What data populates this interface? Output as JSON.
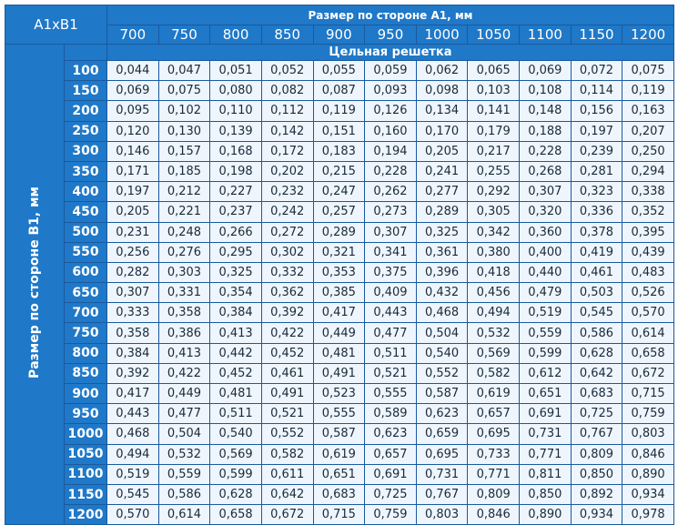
{
  "table": {
    "corner": "A1xB1",
    "column_axis_title": "Размер по стороне А1, мм",
    "row_axis_title": "Размер по стороне B1, мм",
    "section_title": "Цельная решетка",
    "columns": [
      "700",
      "750",
      "800",
      "850",
      "900",
      "950",
      "1000",
      "1050",
      "1100",
      "1150",
      "1200"
    ],
    "rows": [
      {
        "label": "100",
        "values": [
          "0,044",
          "0,047",
          "0,051",
          "0,052",
          "0,055",
          "0,059",
          "0,062",
          "0,065",
          "0,069",
          "0,072",
          "0,075"
        ]
      },
      {
        "label": "150",
        "values": [
          "0,069",
          "0,075",
          "0,080",
          "0,082",
          "0,087",
          "0,093",
          "0,098",
          "0,103",
          "0,108",
          "0,114",
          "0,119"
        ]
      },
      {
        "label": "200",
        "values": [
          "0,095",
          "0,102",
          "0,110",
          "0,112",
          "0,119",
          "0,126",
          "0,134",
          "0,141",
          "0,148",
          "0,156",
          "0,163"
        ]
      },
      {
        "label": "250",
        "values": [
          "0,120",
          "0,130",
          "0,139",
          "0,142",
          "0,151",
          "0,160",
          "0,170",
          "0,179",
          "0,188",
          "0,197",
          "0,207"
        ]
      },
      {
        "label": "300",
        "values": [
          "0,146",
          "0,157",
          "0,168",
          "0,172",
          "0,183",
          "0,194",
          "0,205",
          "0,217",
          "0,228",
          "0,239",
          "0,250"
        ]
      },
      {
        "label": "350",
        "values": [
          "0,171",
          "0,185",
          "0,198",
          "0,202",
          "0,215",
          "0,228",
          "0,241",
          "0,255",
          "0,268",
          "0,281",
          "0,294"
        ]
      },
      {
        "label": "400",
        "values": [
          "0,197",
          "0,212",
          "0,227",
          "0,232",
          "0,247",
          "0,262",
          "0,277",
          "0,292",
          "0,307",
          "0,323",
          "0,338"
        ]
      },
      {
        "label": "450",
        "values": [
          "0,205",
          "0,221",
          "0,237",
          "0,242",
          "0,257",
          "0,273",
          "0,289",
          "0,305",
          "0,320",
          "0,336",
          "0,352"
        ]
      },
      {
        "label": "500",
        "values": [
          "0,231",
          "0,248",
          "0,266",
          "0,272",
          "0,289",
          "0,307",
          "0,325",
          "0,342",
          "0,360",
          "0,378",
          "0,395"
        ]
      },
      {
        "label": "550",
        "values": [
          "0,256",
          "0,276",
          "0,295",
          "0,302",
          "0,321",
          "0,341",
          "0,361",
          "0,380",
          "0,400",
          "0,419",
          "0,439"
        ]
      },
      {
        "label": "600",
        "values": [
          "0,282",
          "0,303",
          "0,325",
          "0,332",
          "0,353",
          "0,375",
          "0,396",
          "0,418",
          "0,440",
          "0,461",
          "0,483"
        ]
      },
      {
        "label": "650",
        "values": [
          "0,307",
          "0,331",
          "0,354",
          "0,362",
          "0,385",
          "0,409",
          "0,432",
          "0,456",
          "0,479",
          "0,503",
          "0,526"
        ]
      },
      {
        "label": "700",
        "values": [
          "0,333",
          "0,358",
          "0,384",
          "0,392",
          "0,417",
          "0,443",
          "0,468",
          "0,494",
          "0,519",
          "0,545",
          "0,570"
        ]
      },
      {
        "label": "750",
        "values": [
          "0,358",
          "0,386",
          "0,413",
          "0,422",
          "0,449",
          "0,477",
          "0,504",
          "0,532",
          "0,559",
          "0,586",
          "0,614"
        ]
      },
      {
        "label": "800",
        "values": [
          "0,384",
          "0,413",
          "0,442",
          "0,452",
          "0,481",
          "0,511",
          "0,540",
          "0,569",
          "0,599",
          "0,628",
          "0,658"
        ]
      },
      {
        "label": "850",
        "values": [
          "0,392",
          "0,422",
          "0,452",
          "0,461",
          "0,491",
          "0,521",
          "0,552",
          "0,582",
          "0,612",
          "0,642",
          "0,672"
        ]
      },
      {
        "label": "900",
        "values": [
          "0,417",
          "0,449",
          "0,481",
          "0,491",
          "0,523",
          "0,555",
          "0,587",
          "0,619",
          "0,651",
          "0,683",
          "0,715"
        ]
      },
      {
        "label": "950",
        "values": [
          "0,443",
          "0,477",
          "0,511",
          "0,521",
          "0,555",
          "0,589",
          "0,623",
          "0,657",
          "0,691",
          "0,725",
          "0,759"
        ]
      },
      {
        "label": "1000",
        "values": [
          "0,468",
          "0,504",
          "0,540",
          "0,552",
          "0,587",
          "0,623",
          "0,659",
          "0,695",
          "0,731",
          "0,767",
          "0,803"
        ]
      },
      {
        "label": "1050",
        "values": [
          "0,494",
          "0,532",
          "0,569",
          "0,582",
          "0,619",
          "0,657",
          "0,695",
          "0,733",
          "0,771",
          "0,809",
          "0,846"
        ]
      },
      {
        "label": "1100",
        "values": [
          "0,519",
          "0,559",
          "0,599",
          "0,611",
          "0,651",
          "0,691",
          "0,731",
          "0,771",
          "0,811",
          "0,850",
          "0,890"
        ]
      },
      {
        "label": "1150",
        "values": [
          "0,545",
          "0,586",
          "0,628",
          "0,642",
          "0,683",
          "0,725",
          "0,767",
          "0,809",
          "0,850",
          "0,892",
          "0,934"
        ]
      },
      {
        "label": "1200",
        "values": [
          "0,570",
          "0,614",
          "0,658",
          "0,672",
          "0,715",
          "0,759",
          "0,803",
          "0,846",
          "0,890",
          "0,934",
          "0,978"
        ]
      }
    ]
  }
}
